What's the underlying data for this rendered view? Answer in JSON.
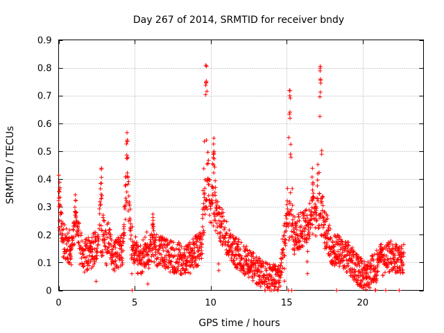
{
  "chart_data": {
    "type": "scatter",
    "title": "Day 267 of 2014, SRMTID for receiver bndy",
    "xlabel": "GPS time / hours",
    "ylabel": "SRMTID / TECUs",
    "xlim": [
      0,
      24
    ],
    "ylim": [
      0,
      0.9
    ],
    "xticks": [
      0,
      5,
      10,
      15,
      20
    ],
    "yticks": [
      0,
      0.1,
      0.2,
      0.3,
      0.4,
      0.5,
      0.6,
      0.7,
      0.8,
      0.9
    ],
    "ytick_labels": [
      "0",
      "0.1",
      "0.2",
      "0.3",
      "0.4",
      "0.5",
      "0.6",
      "0.7",
      "0.8",
      "0.9"
    ],
    "grid": true,
    "marker": "+",
    "color": "#ff0000",
    "series": [
      {
        "name": "SRMTID",
        "description": "Dense scatter of + markers, ~1 point per minute, estimated envelope",
        "x_range": [
          0,
          22.7
        ],
        "baseline": [
          [
            0.0,
            0.3
          ],
          [
            0.3,
            0.18
          ],
          [
            0.7,
            0.15
          ],
          [
            1.2,
            0.25
          ],
          [
            1.6,
            0.12
          ],
          [
            2.2,
            0.14
          ],
          [
            2.7,
            0.18
          ],
          [
            3.2,
            0.2
          ],
          [
            3.6,
            0.12
          ],
          [
            4.2,
            0.15
          ],
          [
            4.5,
            0.4
          ],
          [
            4.8,
            0.18
          ],
          [
            5.3,
            0.1
          ],
          [
            6.0,
            0.17
          ],
          [
            6.5,
            0.14
          ],
          [
            7.5,
            0.12
          ],
          [
            8.5,
            0.11
          ],
          [
            9.4,
            0.16
          ],
          [
            9.7,
            0.35
          ],
          [
            10.2,
            0.3
          ],
          [
            10.8,
            0.22
          ],
          [
            11.5,
            0.14
          ],
          [
            12.5,
            0.1
          ],
          [
            13.5,
            0.05
          ],
          [
            14.5,
            0.04
          ],
          [
            15.0,
            0.25
          ],
          [
            15.5,
            0.2
          ],
          [
            16.0,
            0.22
          ],
          [
            16.5,
            0.25
          ],
          [
            17.0,
            0.3
          ],
          [
            17.4,
            0.25
          ],
          [
            18.0,
            0.15
          ],
          [
            19.0,
            0.12
          ],
          [
            19.7,
            0.07
          ],
          [
            20.3,
            0.05
          ],
          [
            21.0,
            0.1
          ],
          [
            21.8,
            0.12
          ],
          [
            22.7,
            0.11
          ]
        ],
        "spikes": [
          {
            "x": 0.05,
            "max": 0.42
          },
          {
            "x": 1.1,
            "max": 0.35
          },
          {
            "x": 2.8,
            "max": 0.44
          },
          {
            "x": 4.5,
            "max": 0.59
          },
          {
            "x": 6.2,
            "max": 0.28
          },
          {
            "x": 9.7,
            "max": 0.84
          },
          {
            "x": 10.2,
            "max": 0.57
          },
          {
            "x": 15.2,
            "max": 0.74
          },
          {
            "x": 16.7,
            "max": 0.44
          },
          {
            "x": 17.2,
            "max": 0.81
          },
          {
            "x": 21.2,
            "max": 0.21
          }
        ]
      }
    ]
  }
}
